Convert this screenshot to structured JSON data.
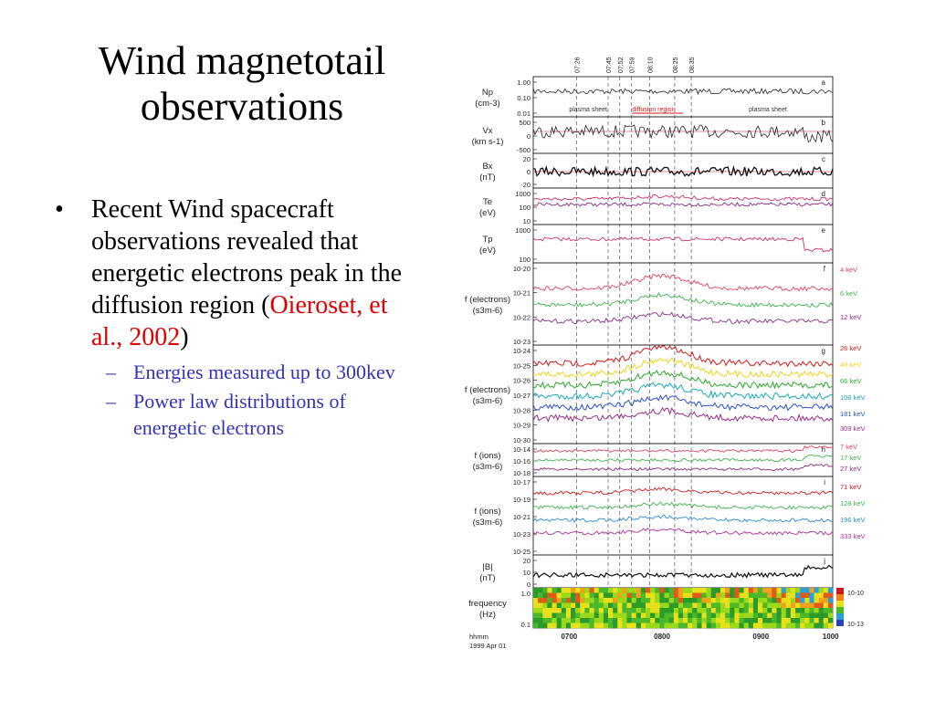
{
  "slide": {
    "title": "Wind magnetotail observations",
    "bullet": {
      "text_before": "Recent Wind spacecraft observations revealed that energetic electrons peak in the diffusion region (",
      "citation": "Oieroset, et al., 2002",
      "text_after": ")"
    },
    "sub_bullets": [
      "Energies measured up to 300kev",
      "Power law distributions of energetic electrons"
    ]
  },
  "chart_data": {
    "type": "line",
    "title": "",
    "top_times": [
      "07:26",
      "07:45",
      "07:52",
      "07:59",
      "08:10",
      "08:25",
      "08:35"
    ],
    "region_labels": [
      "plasma sheet",
      "diffusion region",
      "plasma sheet"
    ],
    "x_tick_labels": [
      "0700",
      "0800",
      "0900",
      "1000"
    ],
    "x_axis_label": "hhmm",
    "date_label": "1999 Apr 01",
    "panels": [
      {
        "id": "a",
        "ylabel": [
          "Np",
          "(cm-3)"
        ],
        "ticks": [
          "1.00",
          "0.10",
          "0.01"
        ]
      },
      {
        "id": "b",
        "ylabel": [
          "Vx",
          "(km s-1)"
        ],
        "ticks": [
          "500",
          "0",
          "-500"
        ]
      },
      {
        "id": "c",
        "ylabel": [
          "Bx",
          "(nT)"
        ],
        "ticks": [
          "20",
          "0",
          "-20"
        ]
      },
      {
        "id": "d",
        "ylabel": [
          "Te",
          "(eV)"
        ],
        "ticks": [
          "1000",
          "100",
          "10"
        ]
      },
      {
        "id": "e",
        "ylabel": [
          "Tp",
          "(eV)"
        ],
        "ticks": [
          "1000",
          "100"
        ]
      },
      {
        "id": "f",
        "ylabel": [
          "f (electrons)",
          "(s3m-6)"
        ],
        "ticks": [
          "10-20",
          "10-21",
          "10-22",
          "10-23"
        ]
      },
      {
        "id": "g",
        "ylabel": [
          "f (electrons)",
          "(s3m-6)"
        ],
        "ticks": [
          "10-24",
          "10-25",
          "10-26",
          "10-27",
          "10-28",
          "10-29",
          "10-30"
        ]
      },
      {
        "id": "h",
        "ylabel": [
          "f (ions)",
          "(s3m-6)"
        ],
        "ticks": [
          "10-14",
          "10-16",
          "10-18"
        ]
      },
      {
        "id": "i",
        "ylabel": [
          "f (ions)",
          "(s3m-6)"
        ],
        "ticks": [
          "10-17",
          "10-19",
          "10-21",
          "10-23",
          "10-25"
        ]
      },
      {
        "id": "j",
        "ylabel": [
          "|B|",
          "(nT)"
        ],
        "ticks": [
          "20",
          "10",
          "0"
        ]
      },
      {
        "id": "k",
        "ylabel": [
          "frequency",
          "(Hz)"
        ],
        "ticks": [
          "1.0",
          "0.1"
        ]
      }
    ],
    "energy_legends": {
      "f": [
        {
          "label": "4 keV",
          "color": "#e0405a"
        },
        {
          "label": "6 keV",
          "color": "#3cb44b"
        },
        {
          "label": "12 keV",
          "color": "#8a2a8a"
        }
      ],
      "g": [
        {
          "label": "26 keV",
          "color": "#cc1a1a"
        },
        {
          "label": "40 keV",
          "color": "#f2d21a"
        },
        {
          "label": "66 keV",
          "color": "#2aa82a"
        },
        {
          "label": "108 keV",
          "color": "#1aa8b8"
        },
        {
          "label": "181 keV",
          "color": "#2a50c8"
        },
        {
          "label": "309 keV",
          "color": "#9a2a8a"
        }
      ],
      "h": [
        {
          "label": "7 keV",
          "color": "#e0405a"
        },
        {
          "label": "17 keV",
          "color": "#3cb44b"
        },
        {
          "label": "27 keV",
          "color": "#8a2a8a"
        }
      ],
      "i": [
        {
          "label": "71 keV",
          "color": "#cc1a1a"
        },
        {
          "label": "128 keV",
          "color": "#3cb44b"
        },
        {
          "label": "196 keV",
          "color": "#2a8ad8"
        },
        {
          "label": "333 keV",
          "color": "#b02a9a"
        }
      ]
    },
    "colorbar_labels": [
      "10-10",
      "10-13"
    ]
  }
}
